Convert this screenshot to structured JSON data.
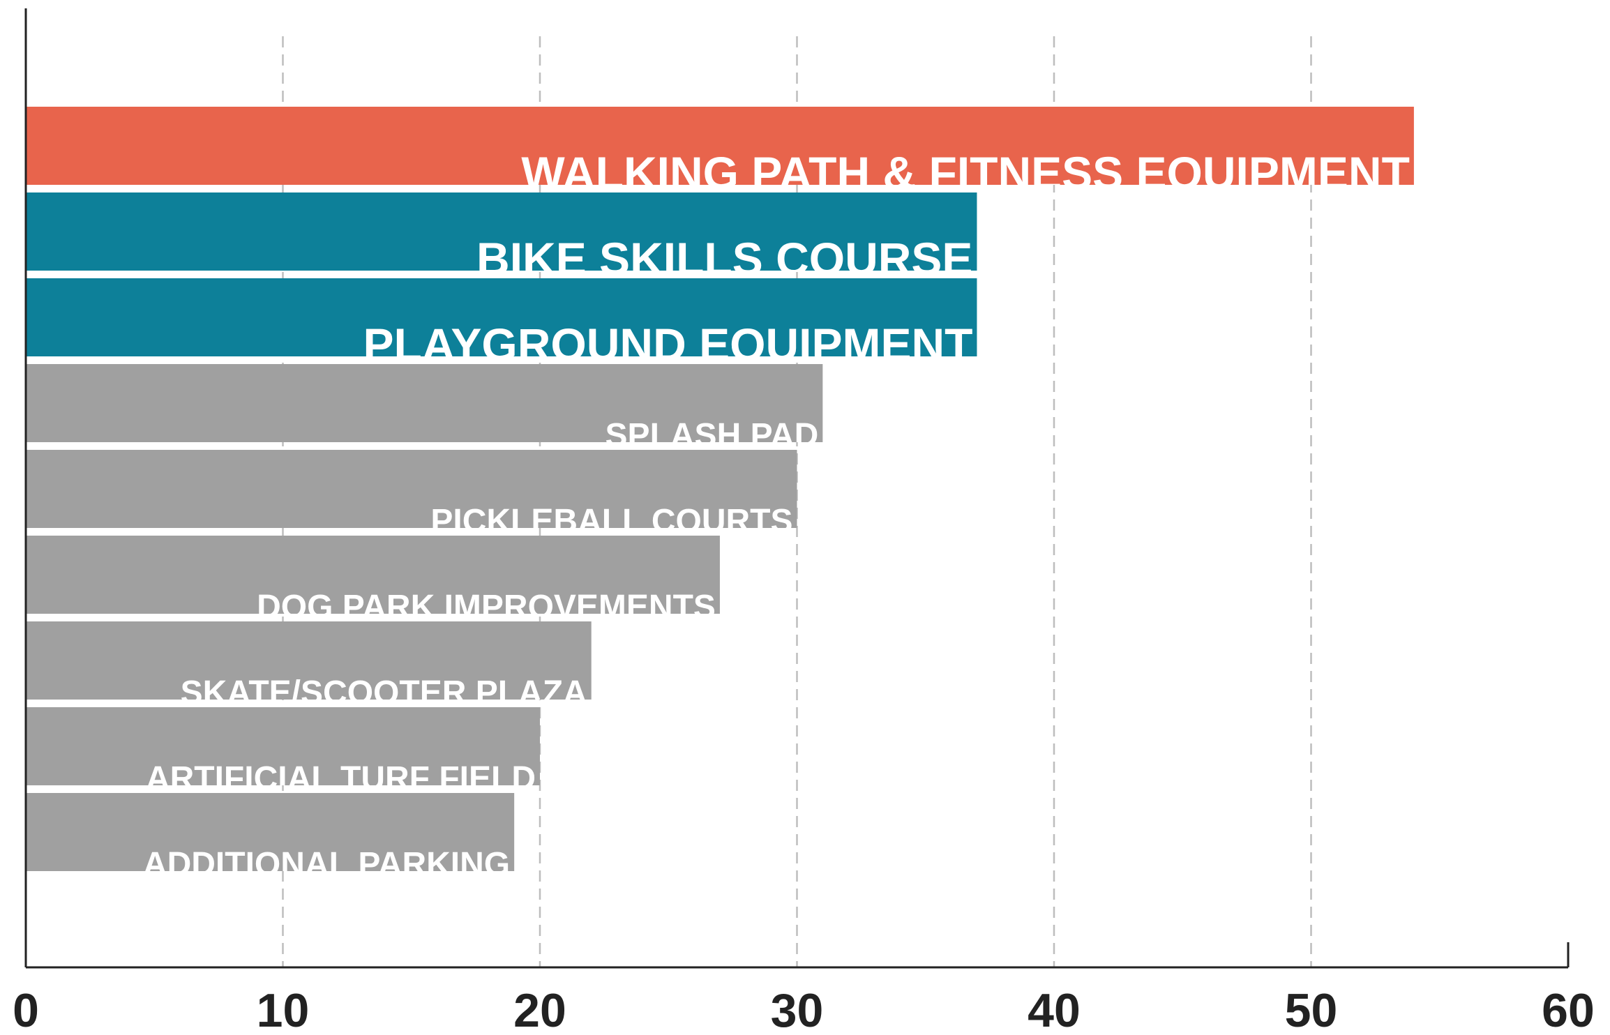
{
  "chart_data": {
    "type": "hbar",
    "categories": [
      "WALKING PATH & FITNESS EQUIPMENT",
      "BIKE SKILLS COURSE",
      "PLAYGROUND EQUIPMENT",
      "SPLASH PAD",
      "PICKLEBALL COURTS",
      "DOG PARK IMPROVEMENTS",
      "SKATE/SCOOTER PLAZA",
      "ARTIFICIAL TURF FIELD",
      "ADDITIONAL PARKING"
    ],
    "values": [
      54,
      37,
      37,
      31,
      30,
      27,
      22,
      20,
      19
    ],
    "colors": [
      "#e8644c",
      "#0d8099",
      "#0d8099",
      "#a0a0a0",
      "#a0a0a0",
      "#a0a0a0",
      "#a0a0a0",
      "#a0a0a0",
      "#a0a0a0"
    ],
    "xlim": [
      0,
      60
    ],
    "xticks": [
      0,
      10,
      20,
      30,
      40,
      50,
      60
    ],
    "grid": true
  }
}
